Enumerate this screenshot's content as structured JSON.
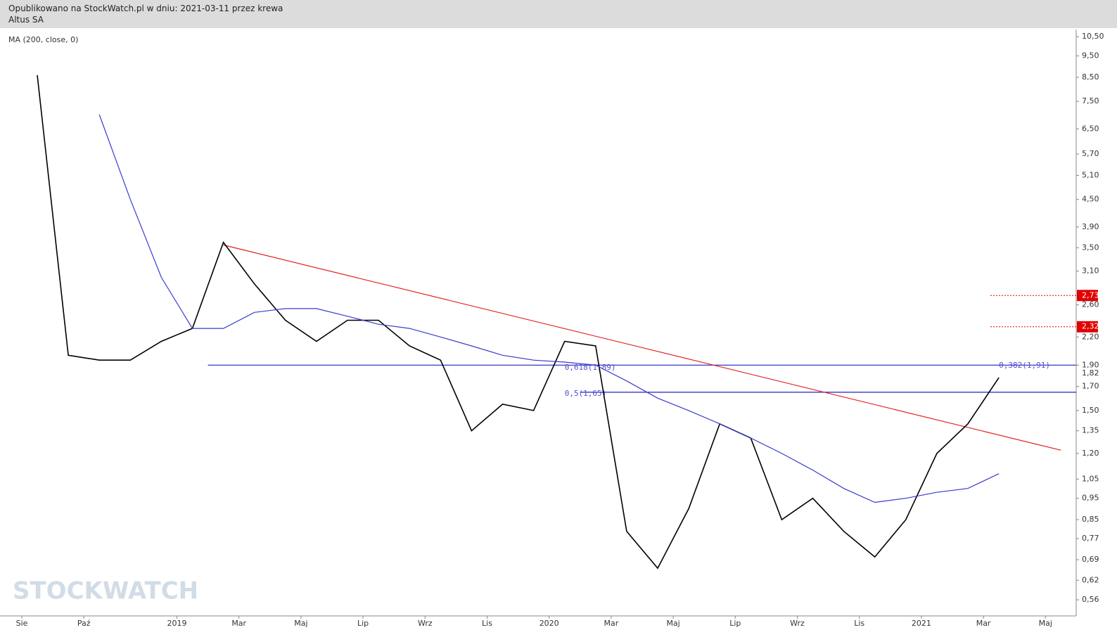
{
  "header": {
    "published": "Opublikowano na StockWatch.pl w dniu: 2021-03-11 przez krewa",
    "instrument": "Altus SA"
  },
  "chart_data": {
    "type": "line",
    "indicator_label": "MA (200, close, 0)",
    "watermark": "STOCKWATCH",
    "log_scale": true,
    "ylim": [
      0.515,
      10.9
    ],
    "yticks": [
      {
        "value": 10.5,
        "label": "10,50"
      },
      {
        "value": 9.5,
        "label": "9,50"
      },
      {
        "value": 8.5,
        "label": "8,50"
      },
      {
        "value": 7.5,
        "label": "7,50"
      },
      {
        "value": 6.5,
        "label": "6,50"
      },
      {
        "value": 5.7,
        "label": "5,70"
      },
      {
        "value": 5.1,
        "label": "5,10"
      },
      {
        "value": 4.5,
        "label": "4,50"
      },
      {
        "value": 3.9,
        "label": "3,90"
      },
      {
        "value": 3.5,
        "label": "3,50"
      },
      {
        "value": 3.1,
        "label": "3,10"
      },
      {
        "value": 2.6,
        "label": "2,60"
      },
      {
        "value": 2.2,
        "label": "2,20"
      },
      {
        "value": 1.9,
        "label": "1,90"
      },
      {
        "value": 1.7,
        "label": "1,70"
      },
      {
        "value": 1.5,
        "label": "1,50"
      },
      {
        "value": 1.35,
        "label": "1,35"
      },
      {
        "value": 1.2,
        "label": "1,20"
      },
      {
        "value": 1.05,
        "label": "1,05"
      },
      {
        "value": 0.95,
        "label": "0,95"
      },
      {
        "value": 0.85,
        "label": "0,85"
      },
      {
        "value": 0.77,
        "label": "0,77"
      },
      {
        "value": 0.69,
        "label": "0,69"
      },
      {
        "value": 0.62,
        "label": "0,62"
      },
      {
        "value": 0.56,
        "label": "0,56"
      }
    ],
    "xticks": [
      {
        "value": "2018-08",
        "label": "Sie"
      },
      {
        "value": "2018-10",
        "label": "Paź"
      },
      {
        "value": "2019-01",
        "label": "2019"
      },
      {
        "value": "2019-03",
        "label": "Mar"
      },
      {
        "value": "2019-05",
        "label": "Maj"
      },
      {
        "value": "2019-07",
        "label": "Lip"
      },
      {
        "value": "2019-09",
        "label": "Wrz"
      },
      {
        "value": "2019-11",
        "label": "Lis"
      },
      {
        "value": "2020-01",
        "label": "2020"
      },
      {
        "value": "2020-03",
        "label": "Mar"
      },
      {
        "value": "2020-05",
        "label": "Maj"
      },
      {
        "value": "2020-07",
        "label": "Lip"
      },
      {
        "value": "2020-09",
        "label": "Wrz"
      },
      {
        "value": "2020-11",
        "label": "Lis"
      },
      {
        "value": "2021-01",
        "label": "2021"
      },
      {
        "value": "2021-03",
        "label": "Mar"
      },
      {
        "value": "2021-05",
        "label": "Maj"
      }
    ],
    "x": [
      "2018-08",
      "2018-09",
      "2018-10",
      "2018-11",
      "2018-12",
      "2019-01",
      "2019-02",
      "2019-03",
      "2019-04",
      "2019-05",
      "2019-06",
      "2019-07",
      "2019-08",
      "2019-09",
      "2019-10",
      "2019-11",
      "2019-12",
      "2020-01",
      "2020-02",
      "2020-03",
      "2020-04",
      "2020-05",
      "2020-06",
      "2020-07",
      "2020-08",
      "2020-09",
      "2020-10",
      "2020-11",
      "2020-12",
      "2021-01",
      "2021-02",
      "2021-03"
    ],
    "series": [
      {
        "color": "#000000",
        "values": [
          8.6,
          2.0,
          1.95,
          1.95,
          2.15,
          2.3,
          3.6,
          2.9,
          2.4,
          2.15,
          2.4,
          2.4,
          2.1,
          1.95,
          1.35,
          1.55,
          1.5,
          2.15,
          2.1,
          0.8,
          0.66,
          0.9,
          1.4,
          1.3,
          0.85,
          0.95,
          0.8,
          0.7,
          0.85,
          1.2,
          1.4,
          1.78
        ]
      },
      {
        "color": "#3a3ad0",
        "values": [
          null,
          null,
          7.0,
          4.5,
          3.0,
          2.3,
          2.3,
          2.5,
          2.55,
          2.55,
          2.45,
          2.35,
          2.3,
          2.2,
          2.1,
          2.0,
          1.95,
          1.93,
          1.9,
          1.75,
          1.6,
          1.5,
          1.4,
          1.3,
          1.2,
          1.1,
          1.0,
          0.93,
          0.95,
          0.98,
          1.0,
          1.08
        ]
      }
    ],
    "trendlines": [
      {
        "x": [
          "2019-02",
          "2021-05"
        ],
        "values": [
          3.55,
          1.22
        ],
        "color": "#e02020"
      }
    ],
    "levels": [
      {
        "value": 1.9,
        "color": "#2020c0",
        "from": "2019-02"
      },
      {
        "value": 1.65,
        "color": "#2020c0",
        "from": "2020-02"
      }
    ],
    "fib_labels": [
      {
        "value": 1.89,
        "label": "0,618(1,89)",
        "at": "2020-01"
      },
      {
        "value": 1.65,
        "label": "0,5(1,65)",
        "at": "2020-01"
      },
      {
        "value": 1.91,
        "label": "0,382(1,91)",
        "at": "2021-03"
      }
    ],
    "price_tags": [
      {
        "value": 2.73,
        "label": "2,73",
        "color": "#e00000"
      },
      {
        "value": 2.32,
        "label": "2,32",
        "color": "#e00000"
      },
      {
        "value": 1.82,
        "label": "1,82",
        "color": "#ffffff"
      }
    ]
  }
}
